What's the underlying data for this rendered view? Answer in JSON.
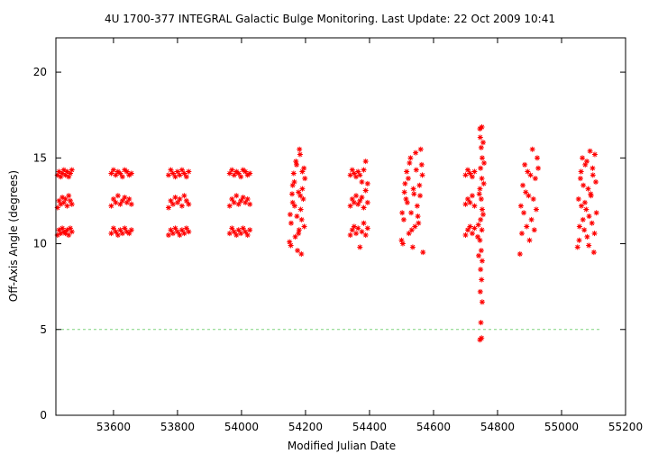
{
  "chart_data": {
    "type": "scatter",
    "title": "4U 1700-377   INTEGRAL Galactic Bulge Monitoring.  Last Update: 22 Oct 2009 10:41",
    "xlabel": "Modified Julian Date",
    "ylabel": "Off-Axis Angle (degrees)",
    "xlim": [
      53420,
      55200
    ],
    "ylim": [
      0,
      22
    ],
    "xticks": [
      53600,
      53800,
      54000,
      54200,
      54400,
      54600,
      54800,
      55000,
      55200
    ],
    "yticks": [
      0,
      5,
      10,
      15,
      20
    ],
    "grid": false,
    "legend": "none",
    "reference_line": {
      "y": 5,
      "x_range": [
        53420,
        55120
      ],
      "color": "#7fd47f",
      "style": "dashed"
    },
    "marker": "asterisk",
    "point_color": "#ff0000",
    "series": [
      {
        "points": [
          [
            53425,
            10.5
          ],
          [
            53430,
            10.8
          ],
          [
            53435,
            10.6
          ],
          [
            53440,
            10.9
          ],
          [
            53445,
            10.7
          ],
          [
            53450,
            10.6
          ],
          [
            53455,
            10.8
          ],
          [
            53460,
            10.5
          ],
          [
            53465,
            10.9
          ],
          [
            53470,
            10.7
          ],
          [
            53425,
            12.1
          ],
          [
            53430,
            12.5
          ],
          [
            53435,
            12.3
          ],
          [
            53440,
            12.7
          ],
          [
            53445,
            12.4
          ],
          [
            53450,
            12.6
          ],
          [
            53455,
            12.2
          ],
          [
            53460,
            12.8
          ],
          [
            53465,
            12.5
          ],
          [
            53470,
            12.3
          ],
          [
            53425,
            14.0
          ],
          [
            53430,
            14.2
          ],
          [
            53435,
            13.9
          ],
          [
            53440,
            14.1
          ],
          [
            53445,
            14.3
          ],
          [
            53450,
            14.0
          ],
          [
            53455,
            14.2
          ],
          [
            53460,
            13.9
          ],
          [
            53465,
            14.1
          ],
          [
            53470,
            14.3
          ],
          [
            53593,
            10.6
          ],
          [
            53600,
            10.9
          ],
          [
            53607,
            10.7
          ],
          [
            53614,
            10.5
          ],
          [
            53621,
            10.8
          ],
          [
            53628,
            10.6
          ],
          [
            53635,
            10.9
          ],
          [
            53642,
            10.7
          ],
          [
            53649,
            10.6
          ],
          [
            53656,
            10.8
          ],
          [
            53593,
            12.2
          ],
          [
            53600,
            12.6
          ],
          [
            53607,
            12.4
          ],
          [
            53614,
            12.8
          ],
          [
            53621,
            12.3
          ],
          [
            53628,
            12.5
          ],
          [
            53635,
            12.7
          ],
          [
            53642,
            12.4
          ],
          [
            53649,
            12.6
          ],
          [
            53656,
            12.3
          ],
          [
            53593,
            14.1
          ],
          [
            53600,
            14.3
          ],
          [
            53607,
            14.0
          ],
          [
            53614,
            14.2
          ],
          [
            53621,
            14.1
          ],
          [
            53628,
            13.9
          ],
          [
            53635,
            14.3
          ],
          [
            53642,
            14.2
          ],
          [
            53649,
            14.0
          ],
          [
            53656,
            14.1
          ],
          [
            53772,
            10.5
          ],
          [
            53779,
            10.8
          ],
          [
            53786,
            10.6
          ],
          [
            53793,
            10.9
          ],
          [
            53800,
            10.7
          ],
          [
            53807,
            10.5
          ],
          [
            53814,
            10.8
          ],
          [
            53821,
            10.6
          ],
          [
            53828,
            10.9
          ],
          [
            53835,
            10.7
          ],
          [
            53772,
            12.1
          ],
          [
            53779,
            12.5
          ],
          [
            53786,
            12.3
          ],
          [
            53793,
            12.7
          ],
          [
            53800,
            12.4
          ],
          [
            53807,
            12.6
          ],
          [
            53814,
            12.2
          ],
          [
            53821,
            12.8
          ],
          [
            53828,
            12.5
          ],
          [
            53835,
            12.3
          ],
          [
            53772,
            14.0
          ],
          [
            53779,
            14.3
          ],
          [
            53786,
            14.1
          ],
          [
            53793,
            13.9
          ],
          [
            53800,
            14.2
          ],
          [
            53807,
            14.0
          ],
          [
            53814,
            14.3
          ],
          [
            53821,
            14.1
          ],
          [
            53828,
            13.9
          ],
          [
            53835,
            14.2
          ],
          [
            53963,
            10.6
          ],
          [
            53970,
            10.9
          ],
          [
            53977,
            10.7
          ],
          [
            53984,
            10.5
          ],
          [
            53991,
            10.8
          ],
          [
            53998,
            10.6
          ],
          [
            54005,
            10.9
          ],
          [
            54012,
            10.7
          ],
          [
            54019,
            10.5
          ],
          [
            54026,
            10.8
          ],
          [
            53963,
            12.2
          ],
          [
            53970,
            12.6
          ],
          [
            53977,
            12.4
          ],
          [
            53984,
            12.8
          ],
          [
            53991,
            12.3
          ],
          [
            53998,
            12.5
          ],
          [
            54005,
            12.7
          ],
          [
            54012,
            12.4
          ],
          [
            54019,
            12.6
          ],
          [
            54026,
            12.3
          ],
          [
            53963,
            14.1
          ],
          [
            53970,
            14.3
          ],
          [
            53977,
            14.0
          ],
          [
            53984,
            14.2
          ],
          [
            53991,
            14.1
          ],
          [
            53998,
            13.9
          ],
          [
            54005,
            14.3
          ],
          [
            54012,
            14.2
          ],
          [
            54019,
            14.0
          ],
          [
            54026,
            14.1
          ],
          [
            54150,
            10.1
          ],
          [
            54155,
            11.2
          ],
          [
            54160,
            12.4
          ],
          [
            54165,
            13.6
          ],
          [
            54170,
            14.8
          ],
          [
            54175,
            9.6
          ],
          [
            54180,
            10.8
          ],
          [
            54185,
            12.0
          ],
          [
            54190,
            13.2
          ],
          [
            54195,
            14.4
          ],
          [
            54152,
            11.7
          ],
          [
            54158,
            12.9
          ],
          [
            54163,
            14.1
          ],
          [
            54168,
            10.4
          ],
          [
            54173,
            11.6
          ],
          [
            54178,
            13.0
          ],
          [
            54183,
            15.2
          ],
          [
            54188,
            11.4
          ],
          [
            54193,
            12.6
          ],
          [
            54198,
            13.8
          ],
          [
            54154,
            9.9
          ],
          [
            54160,
            13.4
          ],
          [
            54166,
            12.2
          ],
          [
            54172,
            14.6
          ],
          [
            54178,
            10.6
          ],
          [
            54184,
            12.8
          ],
          [
            54190,
            14.2
          ],
          [
            54196,
            11.0
          ],
          [
            54181,
            15.5
          ],
          [
            54187,
            9.4
          ],
          [
            54340,
            10.5
          ],
          [
            54346,
            10.8
          ],
          [
            54352,
            11.0
          ],
          [
            54358,
            10.6
          ],
          [
            54364,
            10.9
          ],
          [
            54370,
            9.8
          ],
          [
            54376,
            10.7
          ],
          [
            54382,
            11.2
          ],
          [
            54388,
            10.5
          ],
          [
            54394,
            10.9
          ],
          [
            54340,
            12.2
          ],
          [
            54346,
            12.6
          ],
          [
            54352,
            12.4
          ],
          [
            54358,
            12.8
          ],
          [
            54364,
            12.3
          ],
          [
            54370,
            12.5
          ],
          [
            54376,
            12.7
          ],
          [
            54382,
            12.1
          ],
          [
            54388,
            13.1
          ],
          [
            54394,
            12.4
          ],
          [
            54340,
            14.0
          ],
          [
            54346,
            14.3
          ],
          [
            54352,
            14.1
          ],
          [
            54358,
            13.9
          ],
          [
            54364,
            14.2
          ],
          [
            54370,
            14.0
          ],
          [
            54376,
            13.6
          ],
          [
            54382,
            14.3
          ],
          [
            54388,
            14.8
          ],
          [
            54394,
            13.5
          ],
          [
            54500,
            10.2
          ],
          [
            54507,
            11.4
          ],
          [
            54514,
            12.6
          ],
          [
            54521,
            13.8
          ],
          [
            54528,
            15.0
          ],
          [
            54535,
            9.8
          ],
          [
            54542,
            11.0
          ],
          [
            54549,
            12.2
          ],
          [
            54556,
            13.4
          ],
          [
            54563,
            14.6
          ],
          [
            54502,
            11.8
          ],
          [
            54509,
            13.0
          ],
          [
            54516,
            14.2
          ],
          [
            54523,
            10.6
          ],
          [
            54530,
            11.8
          ],
          [
            54537,
            13.2
          ],
          [
            54544,
            15.3
          ],
          [
            54551,
            11.6
          ],
          [
            54558,
            12.8
          ],
          [
            54565,
            14.0
          ],
          [
            54504,
            10.0
          ],
          [
            54511,
            13.5
          ],
          [
            54518,
            12.4
          ],
          [
            54525,
            14.7
          ],
          [
            54532,
            10.8
          ],
          [
            54539,
            12.9
          ],
          [
            54546,
            14.3
          ],
          [
            54553,
            11.2
          ],
          [
            54560,
            15.5
          ],
          [
            54567,
            9.5
          ],
          [
            54700,
            10.5
          ],
          [
            54707,
            10.8
          ],
          [
            54714,
            11.0
          ],
          [
            54721,
            10.6
          ],
          [
            54728,
            10.9
          ],
          [
            54700,
            12.3
          ],
          [
            54707,
            12.6
          ],
          [
            54714,
            12.4
          ],
          [
            54721,
            12.8
          ],
          [
            54728,
            12.2
          ],
          [
            54700,
            14.0
          ],
          [
            54707,
            14.3
          ],
          [
            54714,
            14.1
          ],
          [
            54721,
            13.9
          ],
          [
            54728,
            14.2
          ],
          [
            54745,
            4.4
          ],
          [
            54750,
            4.5
          ],
          [
            54748,
            5.4
          ],
          [
            54752,
            6.6
          ],
          [
            54746,
            7.2
          ],
          [
            54750,
            7.9
          ],
          [
            54747,
            8.5
          ],
          [
            54752,
            9.0
          ],
          [
            54749,
            9.6
          ],
          [
            54745,
            10.2
          ],
          [
            54751,
            10.8
          ],
          [
            54747,
            11.4
          ],
          [
            54752,
            12.0
          ],
          [
            54749,
            12.6
          ],
          [
            54745,
            13.2
          ],
          [
            54751,
            13.8
          ],
          [
            54747,
            14.4
          ],
          [
            54752,
            15.0
          ],
          [
            54749,
            15.6
          ],
          [
            54746,
            16.2
          ],
          [
            54751,
            16.8
          ],
          [
            54745,
            16.7
          ],
          [
            54740,
            11.1
          ],
          [
            54743,
            12.9
          ],
          [
            54755,
            11.7
          ],
          [
            54757,
            13.5
          ],
          [
            54738,
            10.4
          ],
          [
            54758,
            14.7
          ],
          [
            54741,
            9.3
          ],
          [
            54755,
            15.9
          ],
          [
            54870,
            9.4
          ],
          [
            54876,
            10.6
          ],
          [
            54882,
            11.8
          ],
          [
            54888,
            13.0
          ],
          [
            54894,
            14.2
          ],
          [
            54900,
            10.2
          ],
          [
            54906,
            11.4
          ],
          [
            54912,
            12.6
          ],
          [
            54918,
            13.8
          ],
          [
            54924,
            15.0
          ],
          [
            54873,
            12.2
          ],
          [
            54879,
            13.4
          ],
          [
            54885,
            14.6
          ],
          [
            54891,
            11.0
          ],
          [
            54897,
            12.8
          ],
          [
            54903,
            14.0
          ],
          [
            54909,
            15.5
          ],
          [
            54915,
            10.8
          ],
          [
            54921,
            12.0
          ],
          [
            54927,
            14.4
          ],
          [
            55050,
            9.8
          ],
          [
            55056,
            11.0
          ],
          [
            55062,
            12.2
          ],
          [
            55068,
            13.4
          ],
          [
            55074,
            14.6
          ],
          [
            55080,
            10.4
          ],
          [
            55086,
            11.6
          ],
          [
            55092,
            12.8
          ],
          [
            55098,
            14.0
          ],
          [
            55104,
            15.2
          ],
          [
            55053,
            12.6
          ],
          [
            55059,
            13.8
          ],
          [
            55065,
            15.0
          ],
          [
            55071,
            10.8
          ],
          [
            55077,
            12.0
          ],
          [
            55083,
            13.2
          ],
          [
            55089,
            15.4
          ],
          [
            55095,
            11.2
          ],
          [
            55101,
            9.5
          ],
          [
            55107,
            13.6
          ],
          [
            55055,
            10.2
          ],
          [
            55061,
            14.2
          ],
          [
            55067,
            11.4
          ],
          [
            55073,
            12.4
          ],
          [
            55079,
            14.8
          ],
          [
            55085,
            9.9
          ],
          [
            55091,
            12.9
          ],
          [
            55097,
            14.4
          ],
          [
            55103,
            10.6
          ],
          [
            55109,
            11.8
          ]
        ]
      }
    ]
  }
}
